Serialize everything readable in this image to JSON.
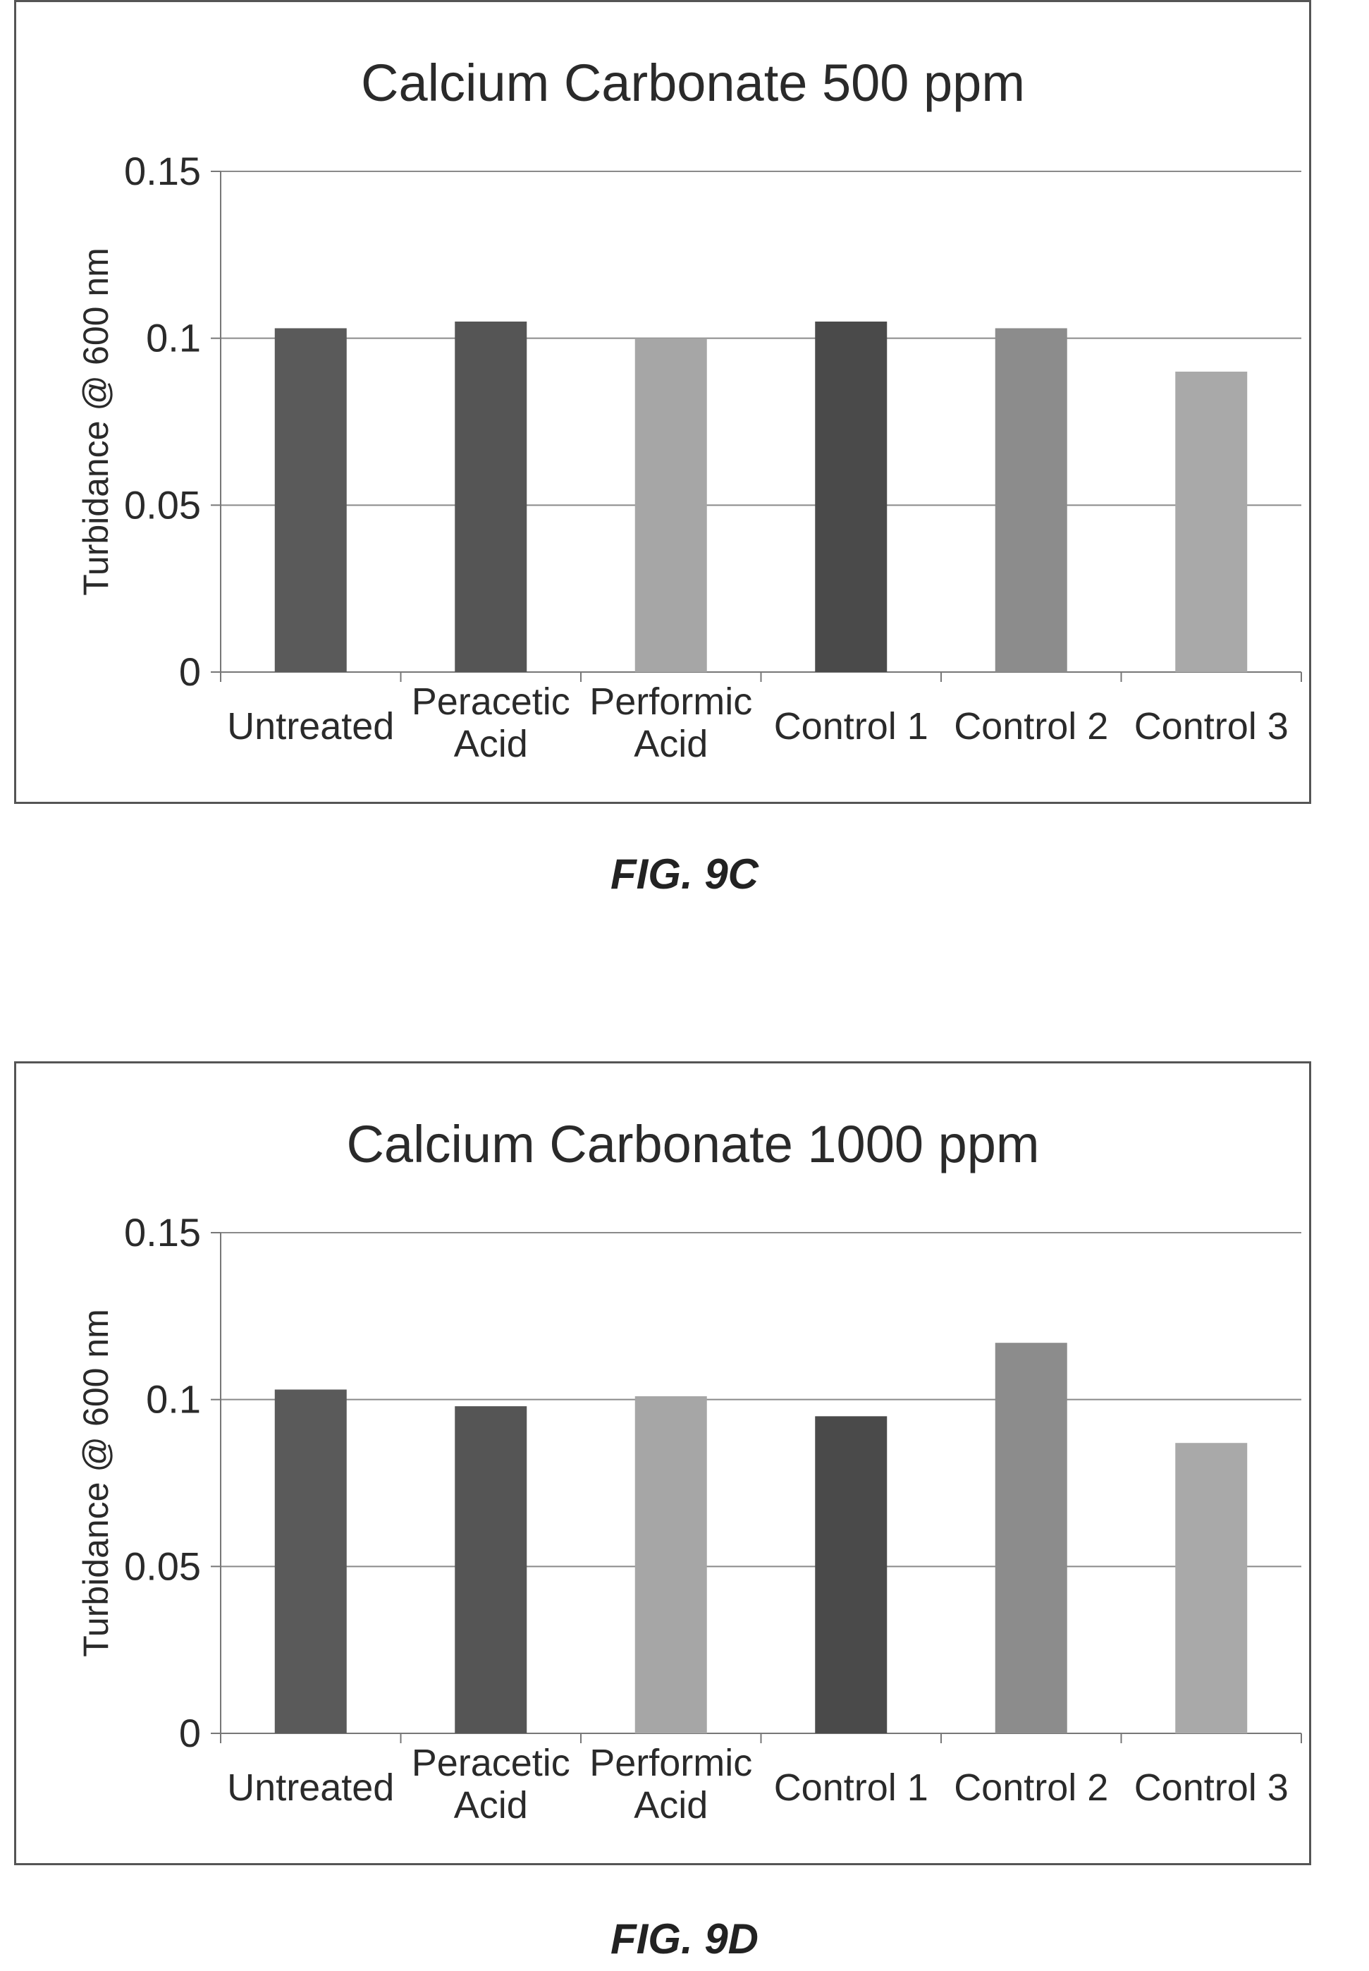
{
  "chart_data": [
    {
      "type": "bar",
      "title": "Calcium Carbonate 500 ppm",
      "xlabel": "",
      "ylabel": "Turbidance @ 600 nm",
      "ylim": [
        0,
        0.15
      ],
      "yticks": [
        "0",
        "0.05",
        "0.1",
        "0.15"
      ],
      "grid": true,
      "categories": [
        [
          "Untreated"
        ],
        [
          "Peracetic",
          "Acid"
        ],
        [
          "Performic",
          "Acid"
        ],
        [
          "Control 1"
        ],
        [
          "Control 2"
        ],
        [
          "Control 3"
        ]
      ],
      "values": [
        0.103,
        0.105,
        0.1,
        0.105,
        0.103,
        0.09
      ],
      "colors": [
        "#5a5a5a",
        "#555555",
        "#a6a6a6",
        "#4a4a4a",
        "#8c8c8c",
        "#a9a9a9"
      ]
    },
    {
      "type": "bar",
      "title": "Calcium Carbonate 1000 ppm",
      "xlabel": "",
      "ylabel": "Turbidance @ 600 nm",
      "ylim": [
        0,
        0.15
      ],
      "yticks": [
        "0",
        "0.05",
        "0.1",
        "0.15"
      ],
      "grid": true,
      "categories": [
        [
          "Untreated"
        ],
        [
          "Peracetic",
          "Acid"
        ],
        [
          "Performic",
          "Acid"
        ],
        [
          "Control 1"
        ],
        [
          "Control 2"
        ],
        [
          "Control 3"
        ]
      ],
      "values": [
        0.103,
        0.098,
        0.101,
        0.095,
        0.117,
        0.087
      ],
      "colors": [
        "#5a5a5a",
        "#555555",
        "#a6a6a6",
        "#4a4a4a",
        "#8c8c8c",
        "#a9a9a9"
      ]
    }
  ],
  "figures": [
    {
      "label": "FIG. 9C"
    },
    {
      "label": "FIG. 9D"
    }
  ]
}
